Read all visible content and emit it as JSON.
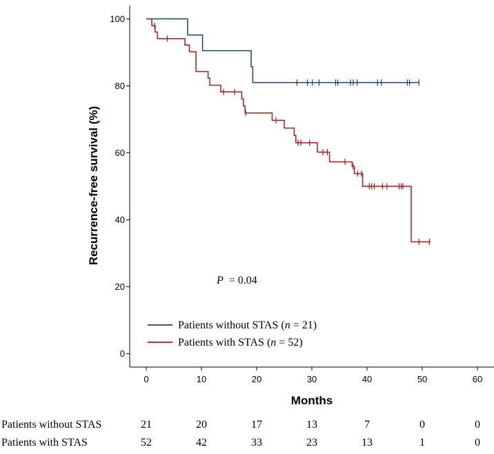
{
  "chart_data": {
    "type": "line",
    "title": "",
    "xlabel": "Months",
    "ylabel": "Recurrence-free survival (%)",
    "xlim": [
      -3,
      63
    ],
    "ylim": [
      -4,
      104
    ],
    "x_ticks": [
      0,
      10,
      20,
      30,
      40,
      50,
      60
    ],
    "y_ticks": [
      0,
      20,
      40,
      60,
      80,
      100
    ],
    "grid": false,
    "legend_position": "lower-left",
    "annotation": {
      "p_label": "P",
      "p_value": "= 0.04"
    },
    "series": [
      {
        "name": "Patients without STAS",
        "name_prefix": "Patients without STAS (",
        "name_italic": "n",
        "name_suffix": " = 21)",
        "color": "#1f3f6e",
        "steps": [
          [
            0,
            100
          ],
          [
            7.5,
            95.2
          ],
          [
            10.2,
            90.5
          ],
          [
            19.0,
            85.7
          ],
          [
            19.3,
            81.0
          ]
        ],
        "end_x": 49.5,
        "censor_x": [
          27.3,
          29.2,
          30.1,
          31.3,
          34.3,
          34.7,
          37.0,
          37.5,
          38.2,
          41.9,
          42.6,
          47.3,
          47.7,
          49.4
        ]
      },
      {
        "name": "Patients with STAS",
        "name_prefix": "Patients with STAS (",
        "name_italic": "n",
        "name_suffix": " = 52)",
        "color": "#a51c1c",
        "steps": [
          [
            0,
            100
          ],
          [
            1.0,
            98.0
          ],
          [
            1.6,
            96.1
          ],
          [
            2.0,
            94.1
          ],
          [
            7.0,
            92.2
          ],
          [
            7.8,
            90.2
          ],
          [
            9.0,
            84.3
          ],
          [
            11.2,
            82.3
          ],
          [
            11.5,
            80.2
          ],
          [
            13.5,
            78.2
          ],
          [
            17.3,
            76.1
          ],
          [
            17.6,
            74.0
          ],
          [
            17.9,
            71.9
          ],
          [
            22.8,
            69.7
          ],
          [
            25.0,
            67.4
          ],
          [
            26.8,
            65.2
          ],
          [
            27.1,
            63.0
          ],
          [
            31.0,
            60.2
          ],
          [
            33.2,
            57.3
          ],
          [
            37.3,
            55.9
          ],
          [
            37.7,
            53.8
          ],
          [
            39.2,
            50.0
          ],
          [
            48.0,
            33.4
          ]
        ],
        "end_x": 51.5,
        "censor_x": [
          1.5,
          3.8,
          14.0,
          16.0,
          18.0,
          23.5,
          27.5,
          28.0,
          29.6,
          32.0,
          32.8,
          36.0,
          37.5,
          38.3,
          39.0,
          40.4,
          40.8,
          41.3,
          42.8,
          43.6,
          45.8,
          46.2,
          46.5,
          49.4,
          51.3
        ]
      }
    ],
    "risk_table": {
      "columns": [
        0,
        10,
        20,
        30,
        40,
        50,
        60
      ],
      "rows": [
        {
          "label": "Patients without STAS",
          "values": [
            "21",
            "20",
            "17",
            "13",
            "7",
            "0",
            "0"
          ]
        },
        {
          "label": "Patients with STAS",
          "values": [
            "52",
            "42",
            "33",
            "23",
            "13",
            "1",
            "0"
          ]
        }
      ]
    }
  }
}
